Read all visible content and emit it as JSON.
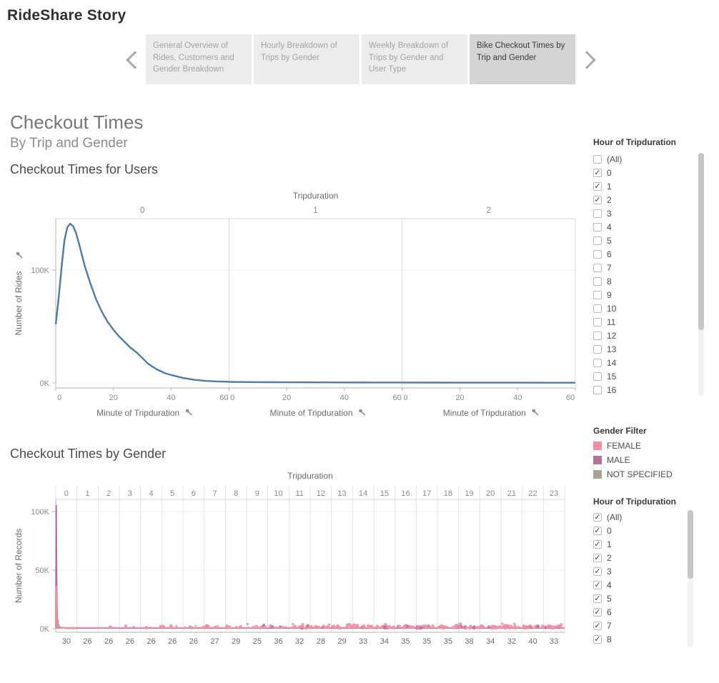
{
  "title": "RideShare Story",
  "story_nav": {
    "tabs": [
      {
        "label": "General Overview of Rides, Customers and Gender Breakdown",
        "selected": false
      },
      {
        "label": "Hourly Breakdown of Trips by Gender",
        "selected": false
      },
      {
        "label": "Weekly Breakdown of Trips by Gender and User Type",
        "selected": false
      },
      {
        "label": "Bike Checkout Times by Trip and Gender",
        "selected": true
      }
    ]
  },
  "dashboard": {
    "title": "Checkout Times",
    "subtitle": "By Trip and Gender",
    "chart1_title": "Checkout Times for Users",
    "chart2_title": "Checkout Times by Gender"
  },
  "filters": {
    "hour1": {
      "title": "Hour of Tripduration",
      "items": [
        {
          "label": "(All)",
          "checked": false
        },
        {
          "label": "0",
          "checked": true
        },
        {
          "label": "1",
          "checked": true
        },
        {
          "label": "2",
          "checked": true
        },
        {
          "label": "3",
          "checked": false
        },
        {
          "label": "4",
          "checked": false
        },
        {
          "label": "5",
          "checked": false
        },
        {
          "label": "6",
          "checked": false
        },
        {
          "label": "7",
          "checked": false
        },
        {
          "label": "8",
          "checked": false
        },
        {
          "label": "9",
          "checked": false
        },
        {
          "label": "10",
          "checked": false
        },
        {
          "label": "11",
          "checked": false
        },
        {
          "label": "12",
          "checked": false
        },
        {
          "label": "13",
          "checked": false
        },
        {
          "label": "14",
          "checked": false
        },
        {
          "label": "15",
          "checked": false
        },
        {
          "label": "16",
          "checked": false
        }
      ]
    },
    "gender": {
      "title": "Gender Filter",
      "items": [
        {
          "label": "FEMALE",
          "color": "#f58ea0"
        },
        {
          "label": "MALE",
          "color": "#b0739e"
        },
        {
          "label": "NOT SPECIFIED",
          "color": "#a8a295"
        }
      ]
    },
    "hour2": {
      "title": "Hour of Tripduration",
      "items": [
        {
          "label": "(All)",
          "checked": true
        },
        {
          "label": "0",
          "checked": true
        },
        {
          "label": "1",
          "checked": true
        },
        {
          "label": "2",
          "checked": true
        },
        {
          "label": "3",
          "checked": true
        },
        {
          "label": "4",
          "checked": true
        },
        {
          "label": "5",
          "checked": true
        },
        {
          "label": "6",
          "checked": true
        },
        {
          "label": "7",
          "checked": true
        },
        {
          "label": "8",
          "checked": true
        }
      ]
    }
  },
  "chart_data": [
    {
      "type": "line",
      "title": "Checkout Times for Users",
      "panel_field": "Tripduration",
      "panels": [
        "0",
        "1",
        "2"
      ],
      "xlabel": "Minute of Tripduration",
      "ylabel": "Number of Rides",
      "xlim": [
        0,
        60
      ],
      "ylim": [
        0,
        150000
      ],
      "x_ticks": [
        0,
        20,
        40,
        60
      ],
      "y_ticks": [
        {
          "value": 0,
          "label": "0K"
        },
        {
          "value": 100000,
          "label": "100K"
        }
      ],
      "line_color": "#4f7aa8",
      "series": [
        {
          "panel_index": 0,
          "x": [
            0,
            1,
            2,
            3,
            4,
            5,
            6,
            7,
            8,
            10,
            12,
            14,
            16,
            18,
            20,
            22,
            24,
            26,
            28,
            30,
            32,
            35,
            38,
            40,
            44,
            48,
            52,
            56,
            60
          ],
          "y": [
            52000,
            75000,
            102000,
            126000,
            138000,
            141000,
            139000,
            133000,
            124000,
            104000,
            88000,
            74000,
            63000,
            54000,
            47000,
            41000,
            36000,
            31000,
            27000,
            22000,
            17000,
            12000,
            8500,
            7000,
            4500,
            2800,
            1800,
            1300,
            1100
          ]
        },
        {
          "panel_index": 1,
          "x": [
            0,
            10,
            20,
            30,
            40,
            50,
            60
          ],
          "y": [
            900,
            700,
            600,
            500,
            450,
            400,
            380
          ]
        },
        {
          "panel_index": 2,
          "x": [
            0,
            10,
            20,
            30,
            40,
            50,
            60
          ],
          "y": [
            350,
            300,
            270,
            250,
            230,
            220,
            210
          ]
        }
      ]
    },
    {
      "type": "line",
      "title": "Checkout Times by Gender",
      "panel_field": "Tripduration",
      "panels": [
        "0",
        "1",
        "2",
        "3",
        "4",
        "5",
        "6",
        "7",
        "8",
        "9",
        "10",
        "11",
        "12",
        "13",
        "14",
        "15",
        "16",
        "17",
        "18",
        "19",
        "20",
        "21",
        "22",
        "23"
      ],
      "ylabel": "Number of Records",
      "xlim": [
        0,
        60
      ],
      "ylim": [
        0,
        115000
      ],
      "y_ticks": [
        {
          "value": 0,
          "label": "0K"
        },
        {
          "value": 50000,
          "label": "50K"
        },
        {
          "value": 100000,
          "label": "100K"
        }
      ],
      "bottom_labels": [
        "30",
        "26",
        "26",
        "26",
        "26",
        "26",
        "26",
        "27",
        "29",
        "25",
        "36",
        "32",
        "28",
        "29",
        "33",
        "34",
        "35",
        "35",
        "35",
        "38",
        "34",
        "32",
        "40",
        "33"
      ],
      "series": [
        {
          "name": "NOT SPECIFIED",
          "color": "#a8a295",
          "panel_index": 0,
          "x": [
            0,
            0.8,
            1.6,
            2.6,
            4,
            7,
            12,
            25,
            60
          ],
          "y": [
            500,
            4000,
            9500,
            4500,
            2000,
            1000,
            600,
            350,
            300
          ]
        },
        {
          "name": "MALE",
          "color": "#b0739e",
          "panel_index": 0,
          "x": [
            0,
            0.7,
            1.5,
            2.3,
            3.2,
            4.5,
            7,
            10,
            15,
            25,
            40,
            60
          ],
          "y": [
            2000,
            40000,
            105000,
            55000,
            22000,
            9000,
            3500,
            1800,
            1000,
            600,
            450,
            400
          ]
        },
        {
          "name": "FEMALE",
          "color": "#f58ea0",
          "panel_index": 0,
          "x": [
            0,
            0.7,
            1.5,
            2.5,
            3.5,
            5,
            8,
            12,
            20,
            35,
            60
          ],
          "y": [
            1000,
            14000,
            36000,
            17000,
            8000,
            3800,
            1800,
            1100,
            700,
            500,
            400
          ]
        }
      ],
      "flat_lines": [
        {
          "name": "MALE",
          "color": "#b0739e",
          "value": 400
        },
        {
          "name": "FEMALE",
          "color": "#f58ea0",
          "value": 900
        }
      ],
      "scatter": {
        "female_color": "#f58ea0",
        "male_color": "#b0739e",
        "start_panel": 2
      }
    }
  ]
}
